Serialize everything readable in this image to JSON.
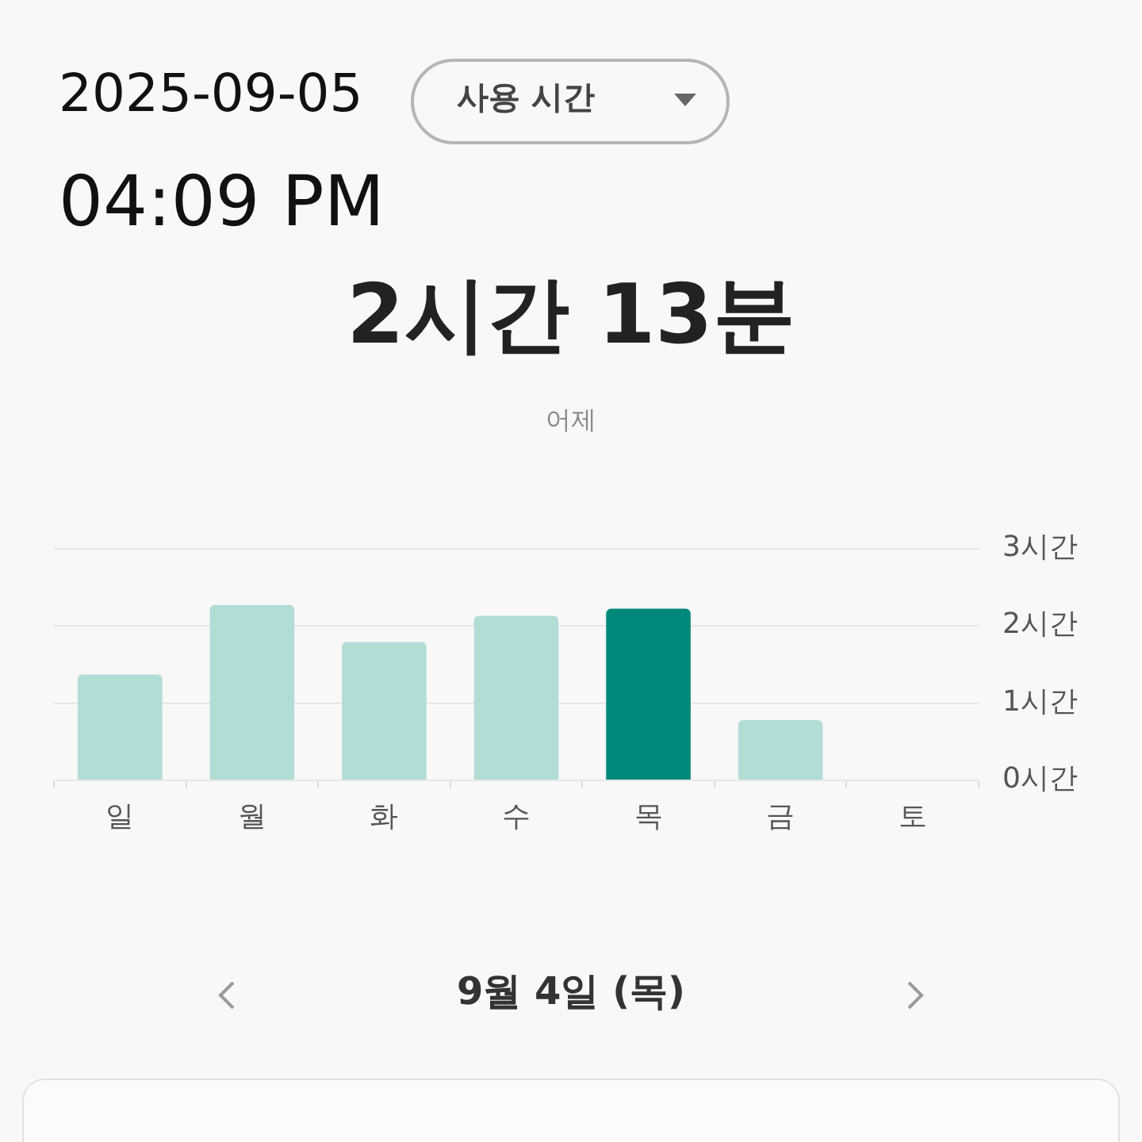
{
  "chart_data": {
    "type": "bar",
    "title": "2시간 13분",
    "subtitle": "어제",
    "annotations": [
      "2025-09-05",
      "04:09 PM",
      "사용 시간",
      "9월 4일 (목)"
    ],
    "categories": [
      "일",
      "월",
      "화",
      "수",
      "목",
      "금",
      "토"
    ],
    "values": [
      1.37,
      2.27,
      1.79,
      2.13,
      2.22,
      0.78,
      null
    ],
    "colors": [
      "#b2ddd6",
      "#b2ddd6",
      "#b2ddd6",
      "#b2ddd6",
      "#00897b",
      "#b2ddd6",
      "#b2ddd6"
    ],
    "ylim": [
      0,
      3
    ],
    "yticks": [
      {
        "value": 0,
        "label": "0시간"
      },
      {
        "value": 1,
        "label": "1시간"
      },
      {
        "value": 2,
        "label": "2시간"
      },
      {
        "value": 3,
        "label": "3시간"
      }
    ],
    "grid": "y"
  }
}
